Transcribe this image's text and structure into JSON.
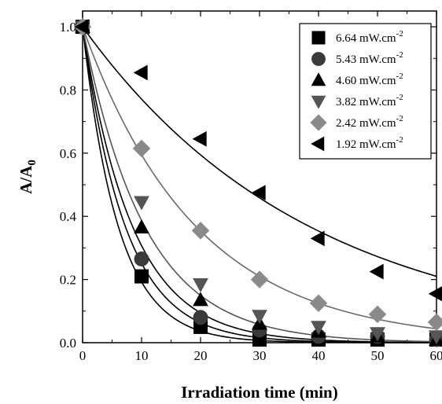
{
  "chart_data": {
    "type": "scatter",
    "xlabel": "Irradiation time (min)",
    "ylabel_base": "A/A",
    "ylabel_sub": "0",
    "xlim": [
      0,
      60
    ],
    "ylim": [
      0,
      1.05
    ],
    "x_ticks": [
      0,
      10,
      20,
      30,
      40,
      50,
      60
    ],
    "y_ticks": [
      0.0,
      0.2,
      0.4,
      0.6,
      0.8,
      1.0
    ],
    "x_tick_labels": [
      "0",
      "10",
      "20",
      "30",
      "40",
      "50",
      "60"
    ],
    "y_tick_labels": [
      "0.0",
      "0.2",
      "0.4",
      "0.6",
      "0.8",
      "1.0"
    ],
    "legend_position": "top-right",
    "grid": false,
    "x": [
      0,
      10,
      20,
      30,
      40,
      50,
      60
    ],
    "series": [
      {
        "name": "6.64",
        "unit": "mW.cm",
        "unit_sup": "-2",
        "marker": "square",
        "color": "#000000",
        "fit_color": "#000000",
        "k": 0.165,
        "values": [
          1.0,
          0.21,
          0.05,
          0.01,
          0.01,
          0.01,
          0.01
        ]
      },
      {
        "name": "5.43",
        "unit": "mW.cm",
        "unit_sup": "-2",
        "marker": "circle",
        "color": "#3a3a3a",
        "fit_color": "#000000",
        "k": 0.138,
        "values": [
          1.0,
          0.265,
          0.08,
          0.04,
          0.02,
          0.02,
          0.01
        ]
      },
      {
        "name": "4.60",
        "unit": "mW.cm",
        "unit_sup": "-2",
        "marker": "triangle-up",
        "color": "#000000",
        "fit_color": "#000000",
        "k": 0.118,
        "values": [
          1.0,
          0.365,
          0.135,
          0.06,
          0.035,
          0.02,
          0.01
        ]
      },
      {
        "name": "3.82",
        "unit": "mW.cm",
        "unit_sup": "-2",
        "marker": "triangle-down",
        "color": "#555555",
        "fit_color": "#555555",
        "k": 0.095,
        "values": [
          1.0,
          0.445,
          0.185,
          0.085,
          0.05,
          0.03,
          0.02
        ]
      },
      {
        "name": "2.42",
        "unit": "mW.cm",
        "unit_sup": "-2",
        "marker": "diamond",
        "color": "#8a8a8a",
        "fit_color": "#6a6a6a",
        "k": 0.052,
        "values": [
          1.0,
          0.615,
          0.355,
          0.2,
          0.125,
          0.09,
          0.065
        ]
      },
      {
        "name": "1.92",
        "unit": "mW.cm",
        "unit_sup": "-2",
        "marker": "triangle-left",
        "color": "#000000",
        "fit_color": "#000000",
        "k": 0.026,
        "values": [
          1.0,
          0.855,
          0.645,
          0.475,
          0.33,
          0.225,
          0.155
        ]
      }
    ]
  }
}
